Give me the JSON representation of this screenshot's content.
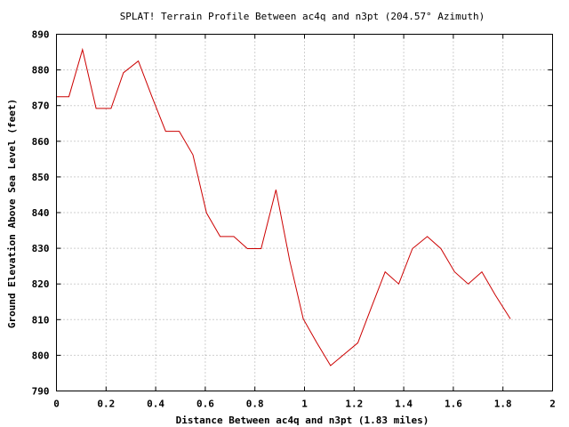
{
  "chart_data": {
    "type": "line",
    "title": "SPLAT! Terrain Profile Between ac4q and n3pt (204.57° Azimuth)",
    "xlabel": "Distance Between ac4q and n3pt (1.83 miles)",
    "ylabel": "Ground Elevation Above Sea Level (feet)",
    "xlim": [
      0,
      2
    ],
    "ylim": [
      790,
      890
    ],
    "x_ticks": [
      "0",
      "0.2",
      "0.4",
      "0.6",
      "0.8",
      "1",
      "1.2",
      "1.4",
      "1.6",
      "1.8",
      "2"
    ],
    "y_ticks": [
      "790",
      "800",
      "810",
      "820",
      "830",
      "840",
      "850",
      "860",
      "870",
      "880",
      "890"
    ],
    "grid": true,
    "series": [
      {
        "color": "#cc0000",
        "x": [
          0,
          0.05,
          0.105,
          0.16,
          0.22,
          0.27,
          0.33,
          0.385,
          0.44,
          0.495,
          0.55,
          0.605,
          0.66,
          0.715,
          0.77,
          0.825,
          0.885,
          0.94,
          0.995,
          1.05,
          1.105,
          1.16,
          1.215,
          1.27,
          1.325,
          1.38,
          1.435,
          1.495,
          1.55,
          1.605,
          1.66,
          1.715,
          1.77,
          1.83
        ],
        "y": [
          872.5,
          872.5,
          885.7,
          869.2,
          869.2,
          879.2,
          882.5,
          872.5,
          862.8,
          862.8,
          856.2,
          839.9,
          833.3,
          833.3,
          829.9,
          829.9,
          846.4,
          826.6,
          810.2,
          803.5,
          797.1,
          800.3,
          803.5,
          813.5,
          823.4,
          820.0,
          829.9,
          833.3,
          829.9,
          823.4,
          820.0,
          823.4,
          816.8,
          810.2
        ]
      }
    ]
  }
}
